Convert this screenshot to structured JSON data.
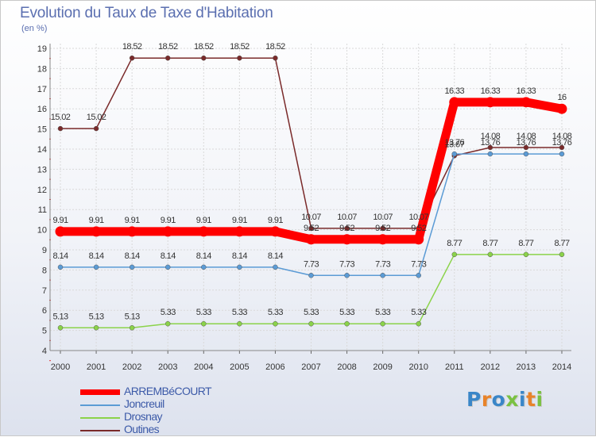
{
  "page": {
    "title": "Evolution du Taux de Taxe d'Habitation",
    "unit": "(en %)",
    "brand": "Proxiti"
  },
  "chart_data": {
    "type": "line",
    "title": "Evolution du Taux de Taxe d'Habitation",
    "subtitle": "(en %)",
    "xlabel": "",
    "ylabel": "",
    "ylim": [
      4,
      19
    ],
    "yticks": [
      4,
      5,
      6,
      7,
      8,
      9,
      10,
      11,
      12,
      13,
      14,
      15,
      16,
      17,
      18,
      19
    ],
    "grid": true,
    "legend_position": "bottom-left",
    "x": [
      "2000",
      "2001",
      "2002",
      "2003",
      "2004",
      "2005",
      "2006",
      "2007",
      "2008",
      "2009",
      "2010",
      "2011",
      "2012",
      "2013",
      "2014"
    ],
    "series": [
      {
        "name": "ARREMBéCOURT",
        "color": "#ff0000",
        "values": [
          9.91,
          9.91,
          9.91,
          9.91,
          9.91,
          9.91,
          9.91,
          9.52,
          9.52,
          9.52,
          9.52,
          16.33,
          16.33,
          16.33,
          16
        ],
        "labels": [
          "9.91",
          "9.91",
          "9.91",
          "9.91",
          "9.91",
          "9.91",
          "9.91",
          "9.52",
          "9.52",
          "9.52",
          "9.52",
          "16.33",
          "16.33",
          "16.33",
          "16"
        ]
      },
      {
        "name": "Joncreuil",
        "color": "#5b9bd5",
        "values": [
          8.14,
          8.14,
          8.14,
          8.14,
          8.14,
          8.14,
          8.14,
          7.73,
          7.73,
          7.73,
          7.73,
          13.76,
          13.76,
          13.76,
          13.76
        ],
        "labels": [
          "8.14",
          "8.14",
          "8.14",
          "8.14",
          "8.14",
          "8.14",
          "8.14",
          "7.73",
          "7.73",
          "7.73",
          "7.73",
          "13.76",
          "13.76",
          "13.76",
          "13.76"
        ]
      },
      {
        "name": "Drosnay",
        "color": "#8bd34a",
        "values": [
          5.13,
          5.13,
          5.13,
          5.33,
          5.33,
          5.33,
          5.33,
          5.33,
          5.33,
          5.33,
          5.33,
          8.77,
          8.77,
          8.77,
          8.77
        ],
        "labels": [
          "5.13",
          "5.13",
          "5.13",
          "5.33",
          "5.33",
          "5.33",
          "5.33",
          "5.33",
          "5.33",
          "5.33",
          "5.33",
          "8.77",
          "8.77",
          "8.77",
          "8.77"
        ]
      },
      {
        "name": "Outines",
        "color": "#7a2a2a",
        "values": [
          15.02,
          15.02,
          18.52,
          18.52,
          18.52,
          18.52,
          18.52,
          10.07,
          10.07,
          10.07,
          10.07,
          13.67,
          14.08,
          14.08,
          14.08
        ],
        "labels": [
          "15.02",
          "15.02",
          "18.52",
          "18.52",
          "18.52",
          "18.52",
          "18.52",
          "10.07",
          "10.07",
          "10.07",
          "10.07",
          "13.67",
          "14.08",
          "14.08",
          "14.08"
        ]
      }
    ]
  }
}
